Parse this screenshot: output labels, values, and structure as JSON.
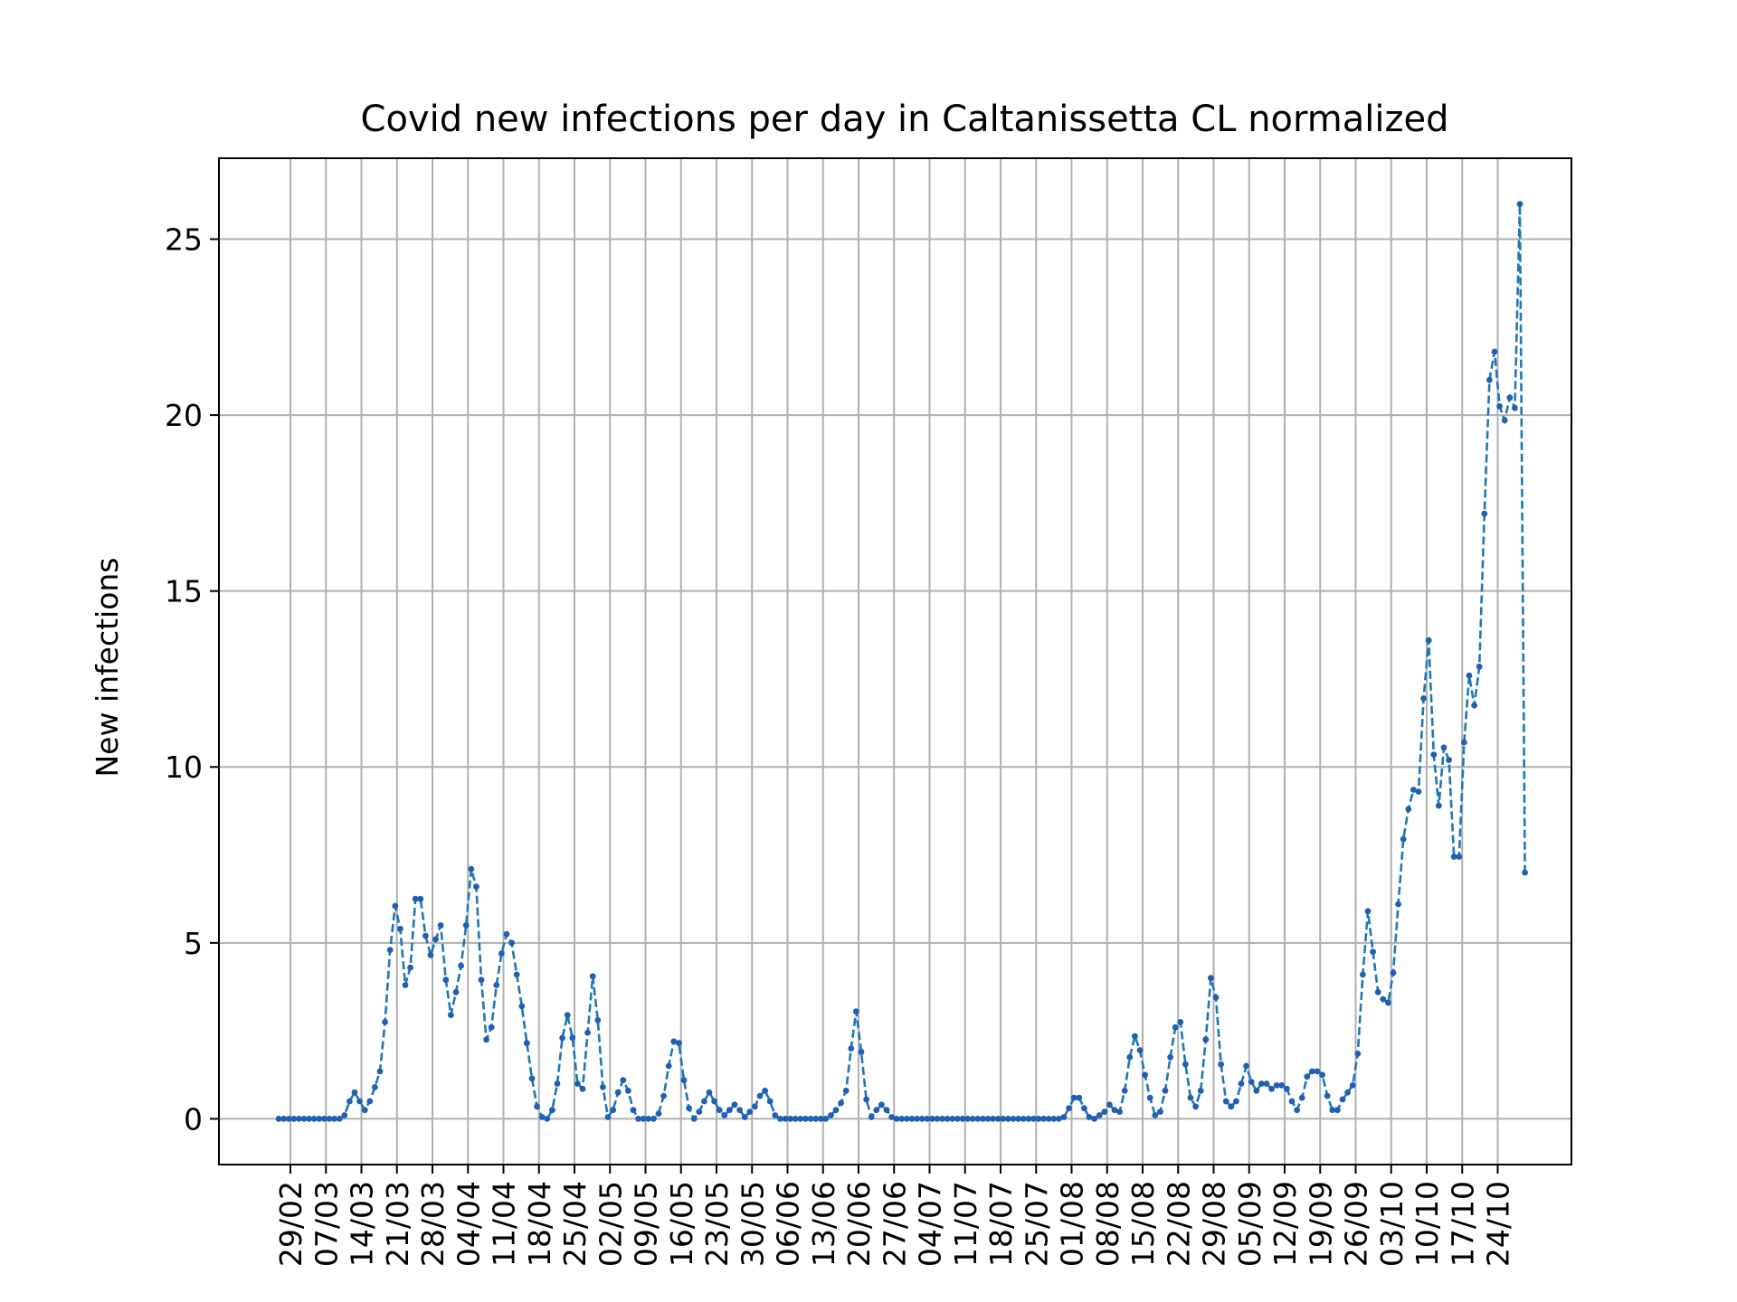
{
  "chart_data": {
    "type": "line",
    "title": "Covid new infections per day in Caltanissetta CL normalized",
    "xlabel": "",
    "ylabel": "New infections",
    "ylim": [
      -1.3,
      27.3
    ],
    "yticks": [
      0,
      5,
      10,
      15,
      20,
      25
    ],
    "grid": true,
    "legend": "none",
    "line_style": "dashed",
    "marker": "dot",
    "colors": {
      "line": "#1f77b4",
      "marker": "#1f5fb4",
      "grid": "#b0b0b0",
      "axes": "#000000"
    },
    "x_start": "2020-02-27",
    "x_ticks": [
      "29/02",
      "07/03",
      "14/03",
      "21/03",
      "28/03",
      "04/04",
      "11/04",
      "18/04",
      "25/04",
      "02/05",
      "09/05",
      "16/05",
      "23/05",
      "30/05",
      "06/06",
      "13/06",
      "20/06",
      "27/06",
      "04/07",
      "11/07",
      "18/07",
      "25/07",
      "01/08",
      "08/08",
      "15/08",
      "22/08",
      "29/08",
      "05/09",
      "12/09",
      "19/09",
      "26/09",
      "03/10",
      "10/10",
      "17/10",
      "24/10"
    ],
    "values": [
      0,
      0,
      0,
      0,
      0,
      0,
      0,
      0,
      0,
      0,
      0,
      0,
      0,
      0.1,
      0.5,
      0.75,
      0.5,
      0.25,
      0.5,
      0.9,
      1.35,
      2.75,
      4.8,
      6.05,
      5.4,
      3.8,
      4.3,
      6.25,
      6.25,
      5.2,
      4.65,
      5.1,
      5.5,
      3.95,
      2.95,
      3.6,
      4.35,
      5.5,
      7.1,
      6.6,
      3.95,
      2.25,
      2.6,
      3.8,
      4.7,
      5.25,
      5.0,
      4.1,
      3.2,
      2.15,
      1.15,
      0.35,
      0.05,
      0,
      0.25,
      1.0,
      2.3,
      2.95,
      2.3,
      1.0,
      0.85,
      2.45,
      4.05,
      2.8,
      0.9,
      0.05,
      0.25,
      0.75,
      1.1,
      0.8,
      0.25,
      0,
      0,
      0,
      0,
      0.15,
      0.65,
      1.5,
      2.2,
      2.15,
      1.1,
      0.3,
      0,
      0.2,
      0.5,
      0.75,
      0.5,
      0.25,
      0.1,
      0.25,
      0.4,
      0.25,
      0.05,
      0.2,
      0.35,
      0.65,
      0.8,
      0.5,
      0.1,
      0,
      0,
      0,
      0,
      0,
      0,
      0,
      0,
      0,
      0,
      0.1,
      0.25,
      0.45,
      0.8,
      2.0,
      3.05,
      1.9,
      0.55,
      0.05,
      0.25,
      0.4,
      0.25,
      0.05,
      0,
      0,
      0,
      0,
      0,
      0,
      0,
      0,
      0,
      0,
      0,
      0,
      0,
      0,
      0,
      0,
      0,
      0,
      0,
      0,
      0,
      0,
      0,
      0,
      0,
      0,
      0,
      0,
      0,
      0,
      0,
      0,
      0,
      0.05,
      0.3,
      0.6,
      0.6,
      0.3,
      0.05,
      0,
      0.1,
      0.2,
      0.4,
      0.25,
      0.2,
      0.8,
      1.75,
      2.35,
      1.95,
      1.25,
      0.6,
      0.1,
      0.2,
      0.8,
      1.75,
      2.6,
      2.75,
      1.55,
      0.6,
      0.35,
      0.8,
      2.25,
      4.0,
      3.45,
      1.55,
      0.5,
      0.35,
      0.5,
      1.0,
      1.5,
      1.05,
      0.8,
      1.0,
      1.0,
      0.85,
      0.95,
      0.95,
      0.85,
      0.5,
      0.25,
      0.6,
      1.2,
      1.35,
      1.35,
      1.25,
      0.65,
      0.25,
      0.25,
      0.55,
      0.75,
      0.95,
      1.85,
      4.1,
      5.9,
      4.75,
      3.6,
      3.4,
      3.3,
      4.15,
      6.1,
      7.95,
      8.8,
      9.35,
      9.3,
      11.95,
      13.6,
      10.35,
      8.9,
      10.55,
      10.2,
      7.45,
      7.45,
      10.7,
      12.6,
      11.75,
      12.85,
      17.2,
      21.0,
      21.8,
      20.25,
      19.85,
      20.5,
      20.2,
      26.0,
      7.0
    ]
  }
}
